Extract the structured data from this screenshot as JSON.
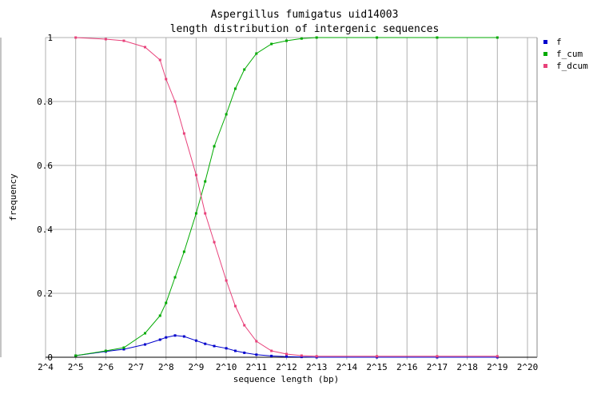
{
  "chart_data": {
    "type": "line",
    "title": "Aspergillus fumigatus uid14003",
    "subtitle": "length distribution of intergenic sequences",
    "x_label": "sequence length (bp)",
    "y_label": "frequency",
    "log_x_base": 2,
    "xlim": [
      16,
      1048576
    ],
    "xticks": [
      {
        "value": 16,
        "label": "2^4"
      },
      {
        "value": 32,
        "label": "2^5"
      },
      {
        "value": 64,
        "label": "2^6"
      },
      {
        "value": 128,
        "label": "2^7"
      },
      {
        "value": 256,
        "label": "2^8"
      },
      {
        "value": 512,
        "label": "2^9"
      },
      {
        "value": 1024,
        "label": "2^10"
      },
      {
        "value": 2048,
        "label": "2^11"
      },
      {
        "value": 4096,
        "label": "2^12"
      },
      {
        "value": 8192,
        "label": "2^13"
      },
      {
        "value": 16384,
        "label": "2^14"
      },
      {
        "value": 32768,
        "label": "2^15"
      },
      {
        "value": 65536,
        "label": "2^16"
      },
      {
        "value": 131072,
        "label": "2^17"
      },
      {
        "value": 262144,
        "label": "2^18"
      },
      {
        "value": 524288,
        "label": "2^19"
      },
      {
        "value": 1048576,
        "label": "2^20"
      }
    ],
    "ylim": [
      0,
      1
    ],
    "yticks": [
      0,
      0.2,
      0.4,
      0.6,
      0.8,
      1
    ],
    "grid": true,
    "legend": "top-right",
    "x": [
      32,
      64,
      97,
      158,
      223,
      256,
      315,
      388,
      512,
      630,
      776,
      1024,
      1261,
      1552,
      2048,
      2896,
      4096,
      5793,
      8192,
      32768,
      131072,
      524288
    ],
    "series": [
      {
        "name": "f",
        "color": "#0000cc",
        "values": [
          0.005,
          0.018,
          0.025,
          0.04,
          0.055,
          0.062,
          0.068,
          0.065,
          0.052,
          0.042,
          0.035,
          0.028,
          0.02,
          0.014,
          0.008,
          0.004,
          0.002,
          0.001,
          0,
          0,
          0,
          0
        ]
      },
      {
        "name": "f_cum",
        "color": "#00aa00",
        "values": [
          0.005,
          0.02,
          0.03,
          0.075,
          0.13,
          0.17,
          0.25,
          0.33,
          0.45,
          0.55,
          0.66,
          0.76,
          0.84,
          0.9,
          0.95,
          0.98,
          0.99,
          0.997,
          1,
          1,
          1,
          1
        ]
      },
      {
        "name": "f_dcum",
        "color": "#e8417a",
        "values": [
          1,
          0.995,
          0.99,
          0.97,
          0.93,
          0.87,
          0.8,
          0.7,
          0.57,
          0.45,
          0.36,
          0.24,
          0.16,
          0.1,
          0.05,
          0.02,
          0.01,
          0.005,
          0.003,
          0.003,
          0.003,
          0.003
        ]
      }
    ]
  }
}
